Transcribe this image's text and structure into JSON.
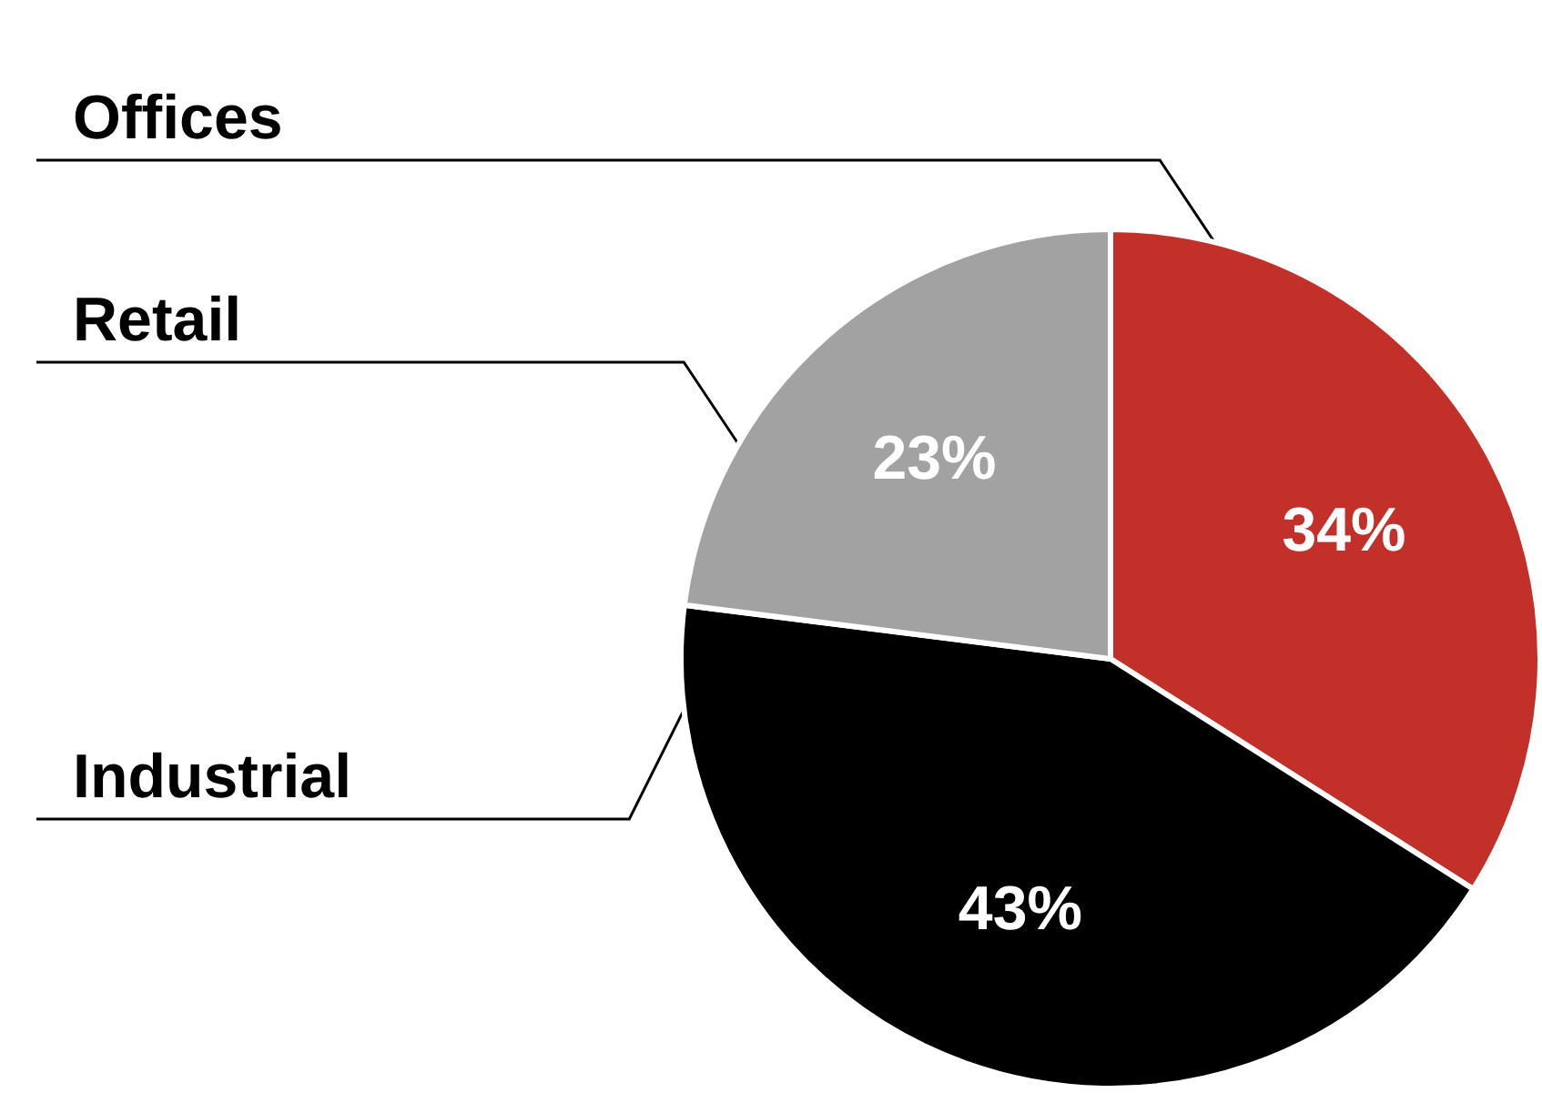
{
  "chart_data": {
    "type": "pie",
    "categories": [
      "Offices",
      "Industrial",
      "Retail"
    ],
    "values": [
      34,
      43,
      23
    ],
    "colors": [
      "#c3302a",
      "#000000",
      "#a2a2a2"
    ],
    "value_labels": [
      "34%",
      "43%",
      "23%"
    ],
    "legend": false
  }
}
